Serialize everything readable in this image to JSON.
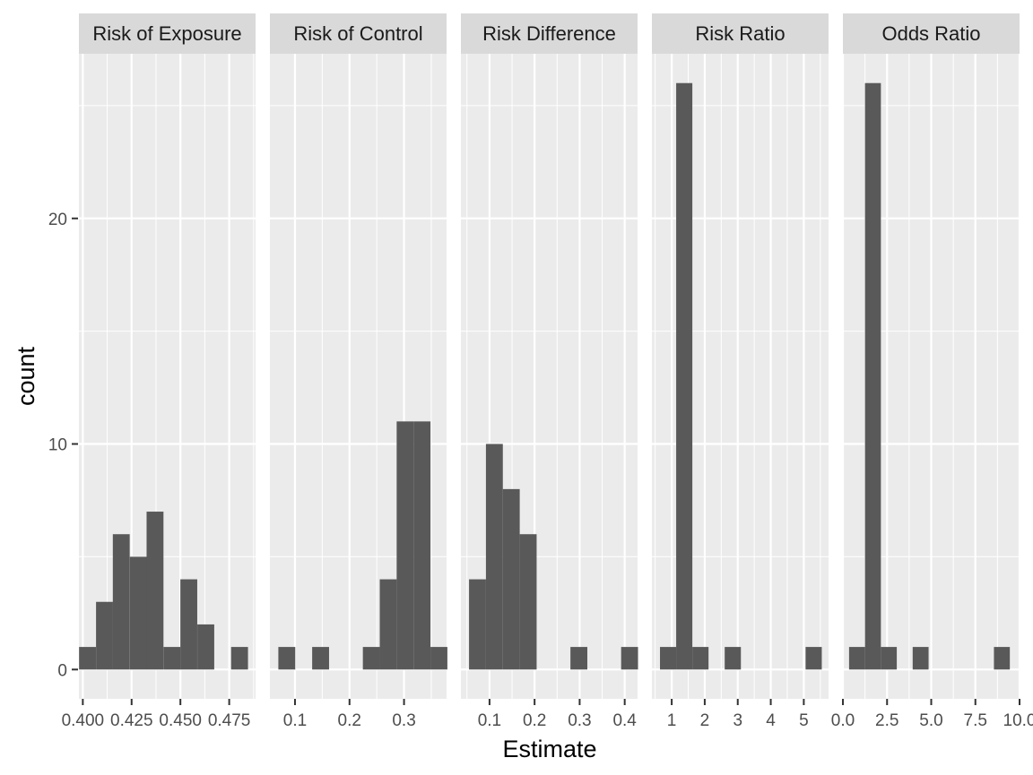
{
  "chart_data": {
    "type": "bar",
    "subtype": "faceted-histogram",
    "xlabel": "Estimate",
    "ylabel": "count",
    "ylim": [
      -1.3,
      27.3
    ],
    "y_ticks": [
      0,
      10,
      20
    ],
    "y_tick_labels": [
      "0",
      "10",
      "20"
    ],
    "grid": true,
    "colors": {
      "panel_bg": "#ebebeb",
      "strip_bg": "#d9d9d9",
      "bar": "#595959",
      "grid": "#ffffff"
    },
    "facets": [
      {
        "label": "Risk of Exposure",
        "xlim": [
          0.398,
          0.4885
        ],
        "x_ticks": [
          0.4,
          0.425,
          0.45,
          0.475
        ],
        "x_tick_labels": [
          "0.400",
          "0.425",
          "0.450",
          "0.475"
        ],
        "bin_width": 0.00865,
        "bins": [
          {
            "x": 0.4024,
            "count": 1
          },
          {
            "x": 0.4111,
            "count": 3
          },
          {
            "x": 0.4197,
            "count": 6
          },
          {
            "x": 0.4284,
            "count": 5
          },
          {
            "x": 0.437,
            "count": 7
          },
          {
            "x": 0.4457,
            "count": 1
          },
          {
            "x": 0.4543,
            "count": 4
          },
          {
            "x": 0.463,
            "count": 2
          },
          {
            "x": 0.4803,
            "count": 1
          }
        ]
      },
      {
        "label": "Risk of Control",
        "xlim": [
          0.054,
          0.378
        ],
        "x_ticks": [
          0.1,
          0.2,
          0.3
        ],
        "x_tick_labels": [
          "0.1",
          "0.2",
          "0.3"
        ],
        "bin_width": 0.031,
        "bins": [
          {
            "x": 0.085,
            "count": 1
          },
          {
            "x": 0.147,
            "count": 1
          },
          {
            "x": 0.24,
            "count": 1
          },
          {
            "x": 0.271,
            "count": 4
          },
          {
            "x": 0.302,
            "count": 11
          },
          {
            "x": 0.333,
            "count": 11
          },
          {
            "x": 0.364,
            "count": 1
          }
        ]
      },
      {
        "label": "Risk Difference",
        "xlim": [
          0.0365,
          0.4285
        ],
        "x_ticks": [
          0.1,
          0.2,
          0.3,
          0.4
        ],
        "x_tick_labels": [
          "0.1",
          "0.2",
          "0.3",
          "0.4"
        ],
        "bin_width": 0.0375,
        "bins": [
          {
            "x": 0.0733,
            "count": 4
          },
          {
            "x": 0.1108,
            "count": 10
          },
          {
            "x": 0.1483,
            "count": 8
          },
          {
            "x": 0.1858,
            "count": 6
          },
          {
            "x": 0.2983,
            "count": 1
          },
          {
            "x": 0.4108,
            "count": 1
          }
        ]
      },
      {
        "label": "Risk Ratio",
        "xlim": [
          0.4,
          5.75
        ],
        "x_ticks": [
          1,
          2,
          3,
          4,
          5
        ],
        "x_tick_labels": [
          "1",
          "2",
          "3",
          "4",
          "5"
        ],
        "bin_width": 0.49,
        "bins": [
          {
            "x": 0.89,
            "count": 1
          },
          {
            "x": 1.38,
            "count": 26
          },
          {
            "x": 1.87,
            "count": 1
          },
          {
            "x": 2.85,
            "count": 1
          },
          {
            "x": 5.3,
            "count": 1
          }
        ]
      },
      {
        "label": "Odds Ratio",
        "xlim": [
          0.0,
          10.0
        ],
        "x_ticks": [
          0.0,
          2.5,
          5.0,
          7.5,
          10.0
        ],
        "x_tick_labels": [
          "0.0",
          "2.5",
          "5.0",
          "7.5",
          "10.0"
        ],
        "bin_width": 0.9,
        "bins": [
          {
            "x": 0.8,
            "count": 1
          },
          {
            "x": 1.7,
            "count": 26
          },
          {
            "x": 2.6,
            "count": 1
          },
          {
            "x": 4.4,
            "count": 1
          },
          {
            "x": 9.0,
            "count": 1
          }
        ]
      }
    ]
  }
}
